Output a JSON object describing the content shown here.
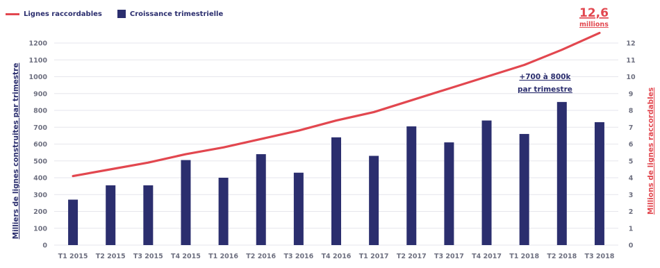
{
  "legend": {
    "line_label": "Lignes raccordables",
    "bar_label": "Croissance trimestrielle"
  },
  "colors": {
    "bar": "#2b2e6e",
    "line": "#e2474f",
    "grid": "#e6e6ec",
    "tick": "#6e7080"
  },
  "annotations": {
    "final_value": "12,6",
    "final_unit": "millions",
    "callout_line1": "+700 à 800k",
    "callout_line2": "par trimestre"
  },
  "chart_data": {
    "type": "bar",
    "categories": [
      "T1 2015",
      "T2 2015",
      "T3 2015",
      "T4 2015",
      "T1 2016",
      "T2 2016",
      "T3 2016",
      "T4 2016",
      "T1 2017",
      "T2 2017",
      "T3 2017",
      "T4 2017",
      "T1 2018",
      "T2 2018",
      "T3 2018"
    ],
    "series": [
      {
        "name": "Croissance trimestrielle",
        "axis": "left",
        "type": "bar",
        "values": [
          270,
          355,
          355,
          505,
          400,
          540,
          430,
          640,
          530,
          705,
          610,
          740,
          660,
          850,
          730
        ]
      },
      {
        "name": "Lignes raccordables",
        "axis": "right",
        "type": "line",
        "values": [
          4.1,
          4.5,
          4.9,
          5.4,
          5.8,
          6.3,
          6.8,
          7.4,
          7.9,
          8.6,
          9.3,
          10.0,
          10.7,
          11.6,
          12.6
        ]
      }
    ],
    "ylabel_left": "Milliers de lignes construites par trimestre",
    "ylabel_right": "Millions de lignes raccordables",
    "ylim_left": [
      0,
      1200
    ],
    "ylim_right": [
      0,
      12
    ],
    "yticks_left": [
      "0",
      "100",
      "200",
      "300",
      "400",
      "500",
      "600",
      "700",
      "800",
      "900",
      "1000",
      "1100",
      "1200"
    ],
    "yticks_right": [
      "0",
      "1",
      "2",
      "3",
      "4",
      "5",
      "6",
      "7",
      "8",
      "9",
      "10",
      "11",
      "12"
    ],
    "grid": true,
    "legend_position": "top-left"
  }
}
